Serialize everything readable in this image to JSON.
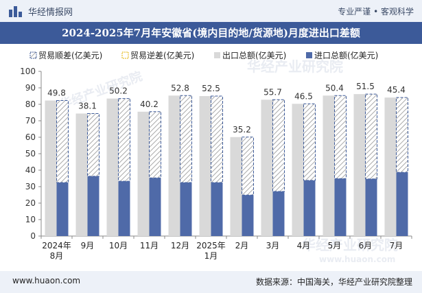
{
  "header": {
    "site_name": "华经情报网",
    "tagline": "专业严谨 • 客观科学"
  },
  "footer": {
    "url": "www.huaon.com",
    "source": "数据来源：中国海关，华经产业研究院整理"
  },
  "watermarks": [
    "华经产业研究院",
    "www.huaon.com"
  ],
  "colors": {
    "header_bg": "#edf1f8",
    "title_bg": "#3c5a99",
    "export_bar": "#d9d9d9",
    "import_bar": "#4f6aa8",
    "surplus_outline": "#3c5a99",
    "surplus_hatch": "#a9a9a9"
  },
  "chart_data": {
    "type": "bar",
    "title": "2024-2025年7月年安徽省(境内目的地/货源地)月度进出口差额",
    "categories": [
      "2024年8月",
      "9月",
      "10月",
      "11月",
      "12月",
      "2025年1月",
      "2月",
      "3月",
      "4月",
      "5月",
      "6月",
      "7月"
    ],
    "category_lines": [
      [
        "2024年",
        "8月"
      ],
      [
        "9月"
      ],
      [
        "10月"
      ],
      [
        "11月"
      ],
      [
        "12月"
      ],
      [
        "2025年",
        "1月"
      ],
      [
        "2月"
      ],
      [
        "3月"
      ],
      [
        "4月"
      ],
      [
        "5月"
      ],
      [
        "6月"
      ],
      [
        "7月"
      ]
    ],
    "series": [
      {
        "name": "贸易顺差(亿美元)",
        "values": [
          49.8,
          38.1,
          50.2,
          40.2,
          52.8,
          52.5,
          35.2,
          55.7,
          46.5,
          50.4,
          51.5,
          45.4
        ]
      },
      {
        "name": "贸易逆差(亿美元)",
        "values": [
          0,
          0,
          0,
          0,
          0,
          0,
          0,
          0,
          0,
          0,
          0,
          0
        ]
      },
      {
        "name": "出口总额(亿美元)",
        "values": [
          82.3,
          74.4,
          83.5,
          75.5,
          85.3,
          85.0,
          60.1,
          82.8,
          80.3,
          85.3,
          86.2,
          84.1
        ]
      },
      {
        "name": "进口总额(亿美元)",
        "values": [
          32.5,
          36.3,
          33.3,
          35.3,
          32.5,
          32.5,
          24.9,
          27.1,
          33.8,
          34.9,
          34.7,
          38.7
        ]
      }
    ],
    "ylim": [
      0,
      100
    ],
    "yticks": [
      0,
      10,
      20,
      30,
      40,
      50,
      60,
      70,
      80,
      90,
      100
    ],
    "legend_position": "top",
    "grid": false
  }
}
